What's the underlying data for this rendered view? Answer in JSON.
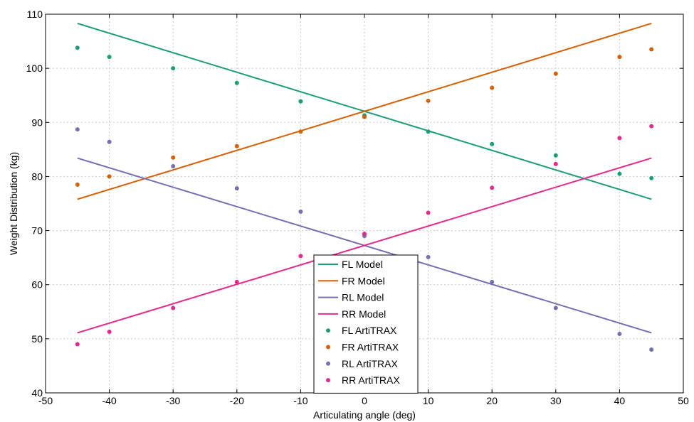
{
  "chart_data": {
    "type": "scatter",
    "title": "",
    "xlabel": "Articulating angle (deg)",
    "ylabel": "Weight Distribution (kg)",
    "xlim": [
      -50,
      50
    ],
    "ylim": [
      40,
      110
    ],
    "xticks": [
      -50,
      -40,
      -30,
      -20,
      -10,
      0,
      10,
      20,
      30,
      40,
      50
    ],
    "yticks": [
      40,
      50,
      60,
      70,
      80,
      90,
      100,
      110
    ],
    "grid": true,
    "legend_position": "lower-center",
    "series": [
      {
        "name": "FL Model",
        "kind": "line",
        "color": "#1b9e77",
        "x": [
          -45,
          45
        ],
        "y": [
          108.3,
          75.8
        ]
      },
      {
        "name": "FR Model",
        "kind": "line",
        "color": "#d95f02",
        "x": [
          -45,
          45
        ],
        "y": [
          75.8,
          108.3
        ]
      },
      {
        "name": "RL Model",
        "kind": "line",
        "color": "#7570b3",
        "x": [
          -45,
          45
        ],
        "y": [
          83.4,
          51.1
        ]
      },
      {
        "name": "RR Model",
        "kind": "line",
        "color": "#e7298a",
        "x": [
          -45,
          45
        ],
        "y": [
          51.1,
          83.4
        ]
      },
      {
        "name": "FL ArtiTRAX",
        "kind": "scatter",
        "color": "#1b9e77",
        "x": [
          -45,
          -40,
          -30,
          -20,
          -10,
          0,
          10,
          20,
          30,
          40,
          45
        ],
        "y": [
          103.8,
          102.1,
          100.0,
          97.3,
          93.9,
          91.3,
          88.3,
          86.0,
          83.9,
          80.5,
          79.7
        ]
      },
      {
        "name": "FR ArtiTRAX",
        "kind": "scatter",
        "color": "#d95f02",
        "x": [
          -45,
          -40,
          -30,
          -20,
          -10,
          0,
          10,
          20,
          30,
          40,
          45
        ],
        "y": [
          78.5,
          80.0,
          83.5,
          85.6,
          88.3,
          91.0,
          94.0,
          96.4,
          99.0,
          102.1,
          103.5
        ]
      },
      {
        "name": "RL ArtiTRAX",
        "kind": "scatter",
        "color": "#7570b3",
        "x": [
          -45,
          -40,
          -30,
          -20,
          -10,
          0,
          10,
          20,
          30,
          40,
          45
        ],
        "y": [
          88.7,
          86.4,
          81.9,
          77.8,
          73.5,
          69.0,
          65.1,
          60.5,
          55.7,
          50.9,
          48.0
        ]
      },
      {
        "name": "RR ArtiTRAX",
        "kind": "scatter",
        "color": "#e7298a",
        "x": [
          -45,
          -40,
          -30,
          -20,
          -10,
          0,
          10,
          20,
          30,
          40,
          45
        ],
        "y": [
          49.0,
          51.3,
          55.7,
          60.5,
          65.3,
          69.4,
          73.3,
          77.9,
          82.3,
          87.1,
          89.3
        ]
      }
    ]
  }
}
